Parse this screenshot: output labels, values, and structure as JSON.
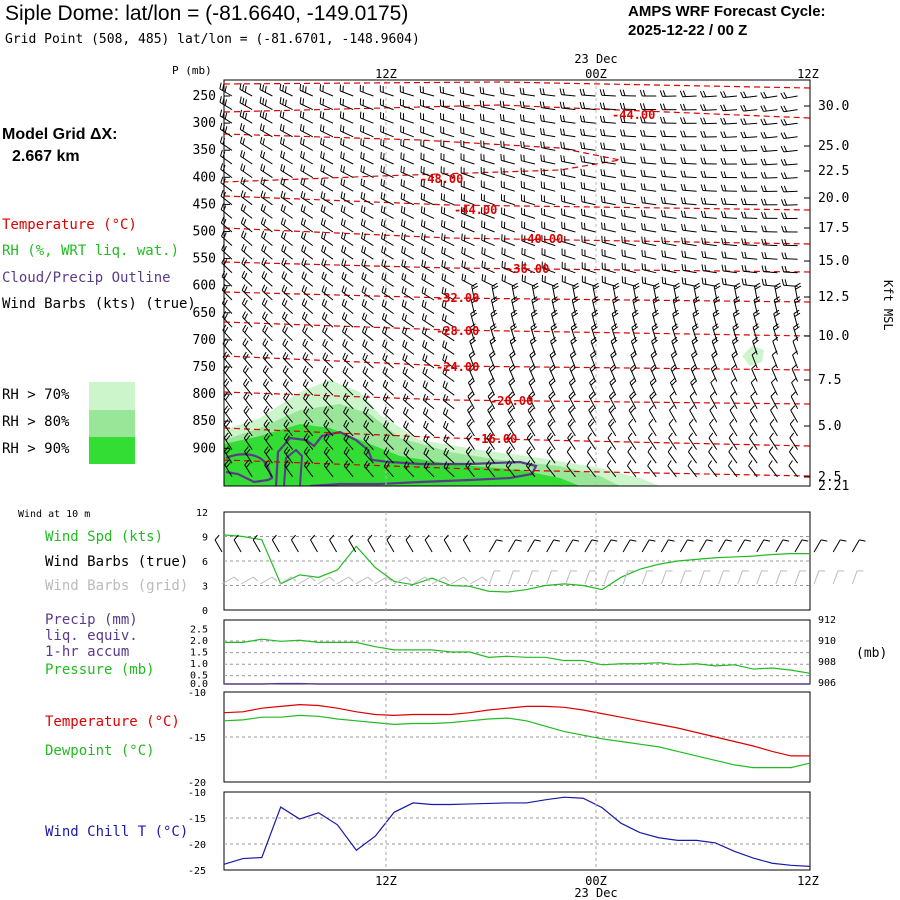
{
  "header": {
    "station_title": "Siple Dome:  lat/lon = (-81.6640, -149.0175)",
    "grid_point": "Grid Point (508, 485) lat/lon = (-81.6701, -148.9604)",
    "cycle_label": "AMPS WRF Forecast Cycle:",
    "cycle_value": "2025-12-22 / 00  Z"
  },
  "legend": {
    "model_grid_label": "Model Grid ΔX:",
    "model_grid_value": "2.667 km",
    "temperature": "Temperature (°C)",
    "rh": "RH (%, WRT liq. wat.)",
    "cloud_outline": "Cloud/Precip Outline",
    "wind_barbs": "Wind Barbs (kts) (true)",
    "rh70": "RH > 70%",
    "rh80": "RH > 80%",
    "rh90": "RH > 90%",
    "colors": {
      "temperature": "#dd0000",
      "rh": "#22bb22",
      "cloud": "#5a3a8a",
      "wind": "#000000",
      "rh70": "#ccf5cc",
      "rh80": "#99e699",
      "rh90": "#33dd33"
    }
  },
  "time_axis": {
    "top_labels": [
      "12Z",
      "00Z",
      "12Z"
    ],
    "bottom_labels": [
      "12Z",
      "00Z",
      "12Z"
    ],
    "date_label": "23 Dec"
  },
  "chart_data": [
    {
      "type": "line",
      "panel": "vertical-profile",
      "pressure_label": "P (mb)",
      "height_label": "Kft MSL",
      "pressure_ticks": [
        "250",
        "300",
        "350",
        "400",
        "450",
        "500",
        "550",
        "600",
        "650",
        "700",
        "750",
        "800",
        "850",
        "900"
      ],
      "height_ticks": [
        "30.0",
        "25.0",
        "22.5",
        "20.0",
        "17.5",
        "15.0",
        "12.5",
        "10.0",
        "7.5",
        "5.0",
        "2.5",
        "2.21"
      ],
      "isotherm_labels": [
        "-44.00",
        "-48.00",
        "-44.00",
        "-40.00",
        "-36.00",
        "-32.00",
        "-28.00",
        "-24.00",
        "-20.00",
        "-16.00"
      ]
    },
    {
      "type": "line",
      "panel": "wind",
      "title": "Wind at 10 m",
      "label_speed": "Wind Spd (kts)",
      "label_barbs_true": "Wind Barbs (true)",
      "label_barbs_grid": "Wind Barbs (grid)",
      "y_ticks": [
        "12",
        "9",
        "6",
        "3",
        "0"
      ],
      "ylim": [
        0,
        12
      ],
      "series": [
        {
          "name": "Wind Spd (kts)",
          "values": [
            9.2,
            9.0,
            8.6,
            3.2,
            4.3,
            4.0,
            4.9,
            7.8,
            5.2,
            3.5,
            3.1,
            3.9,
            3.0,
            2.9,
            2.3,
            2.2,
            2.5,
            3.0,
            3.2,
            3.0,
            2.5,
            4.0,
            5.0,
            5.6,
            6.0,
            6.2,
            6.4,
            6.5,
            6.6,
            6.8,
            6.9,
            6.9
          ]
        }
      ]
    },
    {
      "type": "line",
      "panel": "precip-pressure",
      "label_precip": "Precip (mm)",
      "label_liq": "liq. equiv.",
      "label_accum": "1-hr accum",
      "label_pressure": "Pressure (mb)",
      "unit_right": "(mb)",
      "y_ticks_left": [
        "2.5",
        "2.0",
        "1.5",
        "1.0",
        "0.5",
        "0.0"
      ],
      "y_ticks_right": [
        "912",
        "910",
        "908",
        "906"
      ],
      "series": [
        {
          "name": "Pressure (mb)",
          "values": [
            909.9,
            909.9,
            910.2,
            910.0,
            910.1,
            909.9,
            909.9,
            909.9,
            909.5,
            909.2,
            909.2,
            909.2,
            909.0,
            909.0,
            908.5,
            908.6,
            908.5,
            908.5,
            908.2,
            908.2,
            907.8,
            907.9,
            907.9,
            908.0,
            907.8,
            907.9,
            907.7,
            907.8,
            907.4,
            907.5,
            907.3,
            907.0
          ]
        },
        {
          "name": "Precip (mm)",
          "values": [
            0,
            0,
            0,
            0.02,
            0.02,
            0,
            0,
            0,
            0,
            0,
            0,
            0,
            0,
            0,
            0,
            0,
            0,
            0,
            0,
            0,
            0,
            0,
            0,
            0,
            0,
            0,
            0,
            0,
            0,
            0,
            0,
            0
          ]
        }
      ]
    },
    {
      "type": "line",
      "panel": "temperature",
      "label_temp": "Temperature (°C)",
      "label_dew": "Dewpoint (°C)",
      "y_ticks": [
        "-10",
        "-15",
        "-20"
      ],
      "ylim": [
        -20,
        -10
      ],
      "series": [
        {
          "name": "Temperature (°C)",
          "values": [
            -12.3,
            -12.2,
            -11.8,
            -11.6,
            -11.4,
            -11.5,
            -11.8,
            -12.2,
            -12.5,
            -12.6,
            -12.5,
            -12.5,
            -12.5,
            -12.3,
            -12.0,
            -11.8,
            -11.6,
            -11.6,
            -11.7,
            -12.0,
            -12.4,
            -12.8,
            -13.2,
            -13.6,
            -14.0,
            -14.5,
            -15.0,
            -15.5,
            -16.0,
            -16.6,
            -17.1,
            -17.1
          ]
        },
        {
          "name": "Dewpoint (°C)",
          "values": [
            -13.2,
            -13.1,
            -12.8,
            -12.8,
            -12.6,
            -12.7,
            -13.0,
            -13.2,
            -13.4,
            -13.6,
            -13.5,
            -13.5,
            -13.4,
            -13.2,
            -13.0,
            -12.9,
            -13.2,
            -13.8,
            -14.4,
            -14.8,
            -15.2,
            -15.5,
            -15.8,
            -16.1,
            -16.6,
            -17.1,
            -17.6,
            -18.1,
            -18.4,
            -18.4,
            -18.4,
            -17.9
          ]
        }
      ]
    },
    {
      "type": "line",
      "panel": "wind-chill",
      "label": "Wind Chill T (°C)",
      "y_ticks": [
        "-10",
        "-15",
        "-20",
        "-25"
      ],
      "ylim": [
        -25,
        -10
      ],
      "series": [
        {
          "name": "Wind Chill T (°C)",
          "values": [
            -23.9,
            -22.8,
            -22.6,
            -12.9,
            -15.2,
            -14.0,
            -16.3,
            -21.2,
            -18.5,
            -13.9,
            -12.1,
            -12.4,
            -12.4,
            -12.3,
            -12.2,
            -12.1,
            -12.1,
            -11.5,
            -11.0,
            -11.2,
            -13.0,
            -16.0,
            -17.8,
            -18.8,
            -19.3,
            -19.3,
            -19.8,
            -21.4,
            -22.7,
            -23.7,
            -24.1,
            -24.3
          ]
        }
      ]
    }
  ]
}
